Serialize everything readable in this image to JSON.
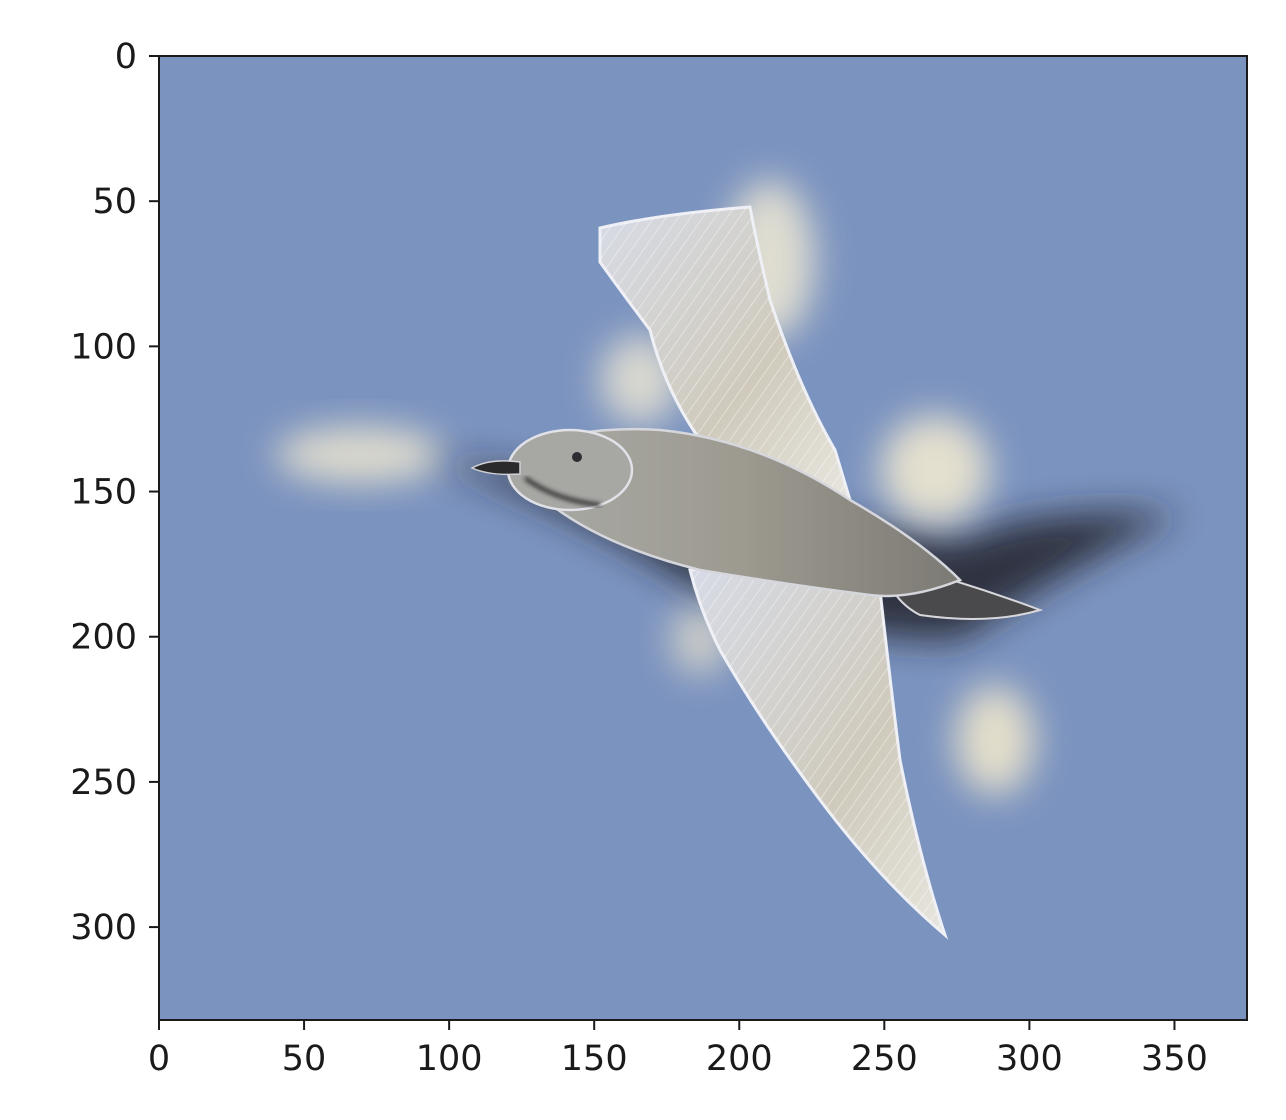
{
  "chart_data": {
    "type": "image",
    "title": "",
    "xlabel": "",
    "ylabel": "",
    "xlim": [
      0,
      375
    ],
    "ylim": [
      332,
      0
    ],
    "xticks": [
      0,
      50,
      100,
      150,
      200,
      250,
      300,
      350
    ],
    "yticks": [
      0,
      50,
      100,
      150,
      200,
      250,
      300
    ],
    "xtick_labels": [
      "0",
      "50",
      "100",
      "150",
      "200",
      "250",
      "300",
      "350"
    ],
    "ytick_labels": [
      "0",
      "50",
      "100",
      "150",
      "200",
      "250",
      "300"
    ],
    "grid": false,
    "image_content": "hybrid image of a seagull in flight against a blue sky"
  },
  "colors": {
    "sky": "#7b93bf",
    "frame": "#1a1a1a"
  }
}
